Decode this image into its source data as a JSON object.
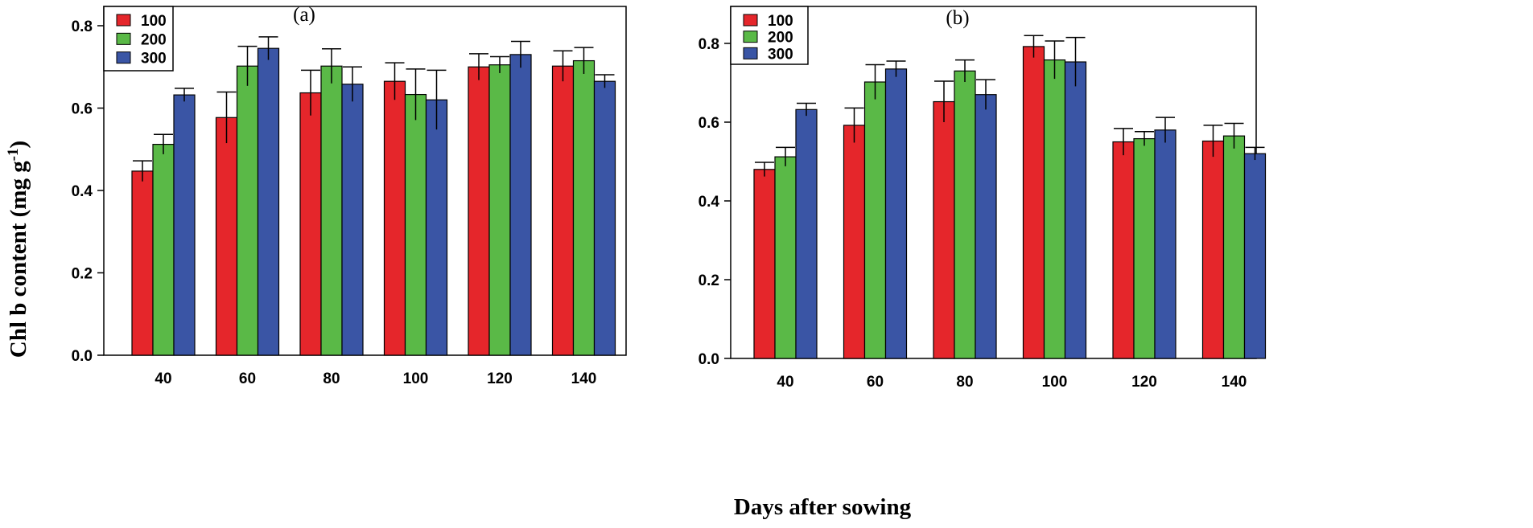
{
  "figure": {
    "ylabel_main": "Chl b content (mg g",
    "ylabel_sup": "-1",
    "ylabel_close": ")",
    "xlabel": "Days after sowing"
  },
  "chart_data": [
    {
      "type": "bar",
      "panel_label": "(a)",
      "categories": [
        "40",
        "60",
        "80",
        "100",
        "120",
        "140"
      ],
      "ylim": [
        0,
        0.8
      ],
      "yticks": [
        "0.0",
        "0.2",
        "0.4",
        "0.6",
        "0.8"
      ],
      "legend": "top-left",
      "series": [
        {
          "name": "100",
          "color": "#e5262b",
          "values": [
            0.447,
            0.577,
            0.637,
            0.665,
            0.7,
            0.702
          ],
          "errors": [
            0.025,
            0.062,
            0.055,
            0.045,
            0.032,
            0.037
          ]
        },
        {
          "name": "200",
          "color": "#5ab947",
          "values": [
            0.512,
            0.702,
            0.702,
            0.633,
            0.705,
            0.715
          ],
          "errors": [
            0.024,
            0.048,
            0.042,
            0.062,
            0.02,
            0.032
          ]
        },
        {
          "name": "300",
          "color": "#3a55a5",
          "values": [
            0.632,
            0.745,
            0.658,
            0.62,
            0.73,
            0.665
          ],
          "errors": [
            0.016,
            0.028,
            0.042,
            0.072,
            0.032,
            0.016
          ]
        }
      ]
    },
    {
      "type": "bar",
      "panel_label": "(b)",
      "categories": [
        "40",
        "60",
        "80",
        "100",
        "120",
        "140"
      ],
      "ylim": [
        0,
        0.8
      ],
      "yticks": [
        "0.0",
        "0.2",
        "0.4",
        "0.6",
        "0.8"
      ],
      "legend": "top-left",
      "series": [
        {
          "name": "100",
          "color": "#e5262b",
          "values": [
            0.48,
            0.592,
            0.652,
            0.792,
            0.55,
            0.552
          ],
          "errors": [
            0.018,
            0.044,
            0.052,
            0.028,
            0.034,
            0.04
          ]
        },
        {
          "name": "200",
          "color": "#5ab947",
          "values": [
            0.512,
            0.702,
            0.73,
            0.758,
            0.558,
            0.565
          ],
          "errors": [
            0.024,
            0.044,
            0.028,
            0.048,
            0.018,
            0.032
          ]
        },
        {
          "name": "300",
          "color": "#3a55a5",
          "values": [
            0.632,
            0.735,
            0.67,
            0.753,
            0.58,
            0.52
          ],
          "errors": [
            0.016,
            0.02,
            0.038,
            0.062,
            0.032,
            0.016
          ]
        }
      ]
    }
  ]
}
